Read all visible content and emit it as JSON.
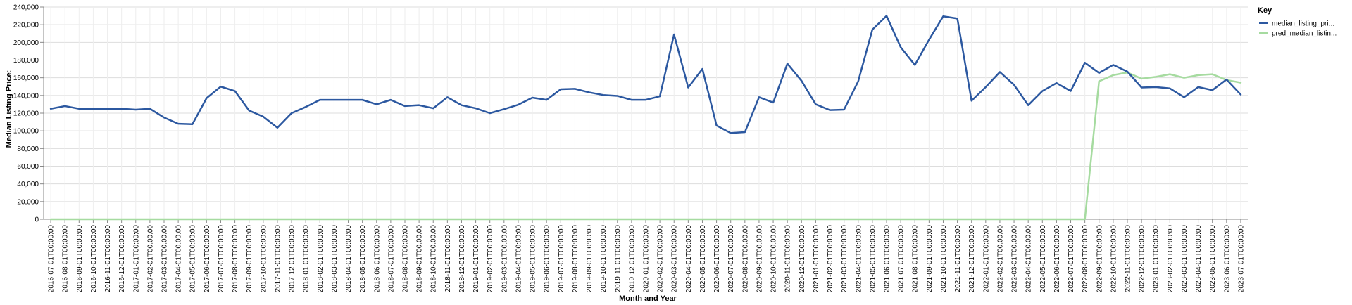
{
  "chart_data": {
    "type": "line",
    "xlabel": "Month and Year",
    "ylabel": "Median Listing Price:",
    "ylim": [
      0,
      240000
    ],
    "yticks": [
      "0",
      "20,000",
      "40,000",
      "60,000",
      "80,000",
      "100,000",
      "120,000",
      "140,000",
      "160,000",
      "180,000",
      "200,000",
      "220,000",
      "240,000"
    ],
    "grid": true,
    "legend": {
      "title": "Key",
      "position": "top-right"
    },
    "x": [
      "2016-07-01T00:00:00",
      "2016-08-01T00:00:00",
      "2016-09-01T00:00:00",
      "2016-10-01T00:00:00",
      "2016-11-01T00:00:00",
      "2016-12-01T00:00:00",
      "2017-01-01T00:00:00",
      "2017-02-01T00:00:00",
      "2017-03-01T00:00:00",
      "2017-04-01T00:00:00",
      "2017-05-01T00:00:00",
      "2017-06-01T00:00:00",
      "2017-07-01T00:00:00",
      "2017-08-01T00:00:00",
      "2017-09-01T00:00:00",
      "2017-10-01T00:00:00",
      "2017-11-01T00:00:00",
      "2017-12-01T00:00:00",
      "2018-01-01T00:00:00",
      "2018-02-01T00:00:00",
      "2018-03-01T00:00:00",
      "2018-04-01T00:00:00",
      "2018-05-01T00:00:00",
      "2018-06-01T00:00:00",
      "2018-07-01T00:00:00",
      "2018-08-01T00:00:00",
      "2018-09-01T00:00:00",
      "2018-10-01T00:00:00",
      "2018-11-01T00:00:00",
      "2018-12-01T00:00:00",
      "2019-01-01T00:00:00",
      "2019-02-01T00:00:00",
      "2019-03-01T00:00:00",
      "2019-04-01T00:00:00",
      "2019-05-01T00:00:00",
      "2019-06-01T00:00:00",
      "2019-07-01T00:00:00",
      "2019-08-01T00:00:00",
      "2019-09-01T00:00:00",
      "2019-10-01T00:00:00",
      "2019-11-01T00:00:00",
      "2019-12-01T00:00:00",
      "2020-01-01T00:00:00",
      "2020-02-01T00:00:00",
      "2020-03-01T00:00:00",
      "2020-04-01T00:00:00",
      "2020-05-01T00:00:00",
      "2020-06-01T00:00:00",
      "2020-07-01T00:00:00",
      "2020-08-01T00:00:00",
      "2020-09-01T00:00:00",
      "2020-10-01T00:00:00",
      "2020-11-01T00:00:00",
      "2020-12-01T00:00:00",
      "2021-01-01T00:00:00",
      "2021-02-01T00:00:00",
      "2021-03-01T00:00:00",
      "2021-04-01T00:00:00",
      "2021-05-01T00:00:00",
      "2021-06-01T00:00:00",
      "2021-07-01T00:00:00",
      "2021-08-01T00:00:00",
      "2021-09-01T00:00:00",
      "2021-10-01T00:00:00",
      "2021-11-01T00:00:00",
      "2021-12-01T00:00:00",
      "2022-01-01T00:00:00",
      "2022-02-01T00:00:00",
      "2022-03-01T00:00:00",
      "2022-04-01T00:00:00",
      "2022-05-01T00:00:00",
      "2022-06-01T00:00:00",
      "2022-07-01T00:00:00",
      "2022-08-01T00:00:00",
      "2022-09-01T00:00:00",
      "2022-10-01T00:00:00",
      "2022-11-01T00:00:00",
      "2022-12-01T00:00:00",
      "2023-01-01T00:00:00",
      "2023-02-01T00:00:00",
      "2023-03-01T00:00:00",
      "2023-04-01T00:00:00",
      "2023-05-01T00:00:00",
      "2023-06-01T00:00:00",
      "2023-07-01T00:00:00"
    ],
    "series": [
      {
        "name": "median_listing_pri...",
        "color": "#2c58a0",
        "values": [
          125000,
          128000,
          125000,
          125000,
          125000,
          125000,
          124000,
          125000,
          115000,
          108000,
          107500,
          137000,
          150000,
          145000,
          123000,
          116000,
          103500,
          120000,
          127000,
          135000,
          135000,
          135000,
          135000,
          130000,
          135000,
          128000,
          129000,
          125500,
          138000,
          129000,
          125500,
          120000,
          124500,
          129500,
          137500,
          135000,
          147000,
          147500,
          143500,
          140500,
          139500,
          135000,
          135000,
          139000,
          209000,
          149000,
          170000,
          106000,
          97500,
          98500,
          138000,
          132000,
          176000,
          156500,
          130000,
          123500,
          124000,
          156000,
          214500,
          230000,
          194500,
          174500,
          203000,
          229500,
          227000,
          134000,
          149500,
          166500,
          152000,
          129000,
          145000,
          154000,
          145000,
          177000,
          165500,
          174500,
          167000,
          149000,
          149500,
          148000,
          138000,
          149500,
          146000,
          158000,
          141000
        ]
      },
      {
        "name": "pred_median_listin...",
        "color": "#a6dba0",
        "values": [
          0,
          0,
          0,
          0,
          0,
          0,
          0,
          0,
          0,
          0,
          0,
          0,
          0,
          0,
          0,
          0,
          0,
          0,
          0,
          0,
          0,
          0,
          0,
          0,
          0,
          0,
          0,
          0,
          0,
          0,
          0,
          0,
          0,
          0,
          0,
          0,
          0,
          0,
          0,
          0,
          0,
          0,
          0,
          0,
          0,
          0,
          0,
          0,
          0,
          0,
          0,
          0,
          0,
          0,
          0,
          0,
          0,
          0,
          0,
          0,
          0,
          0,
          0,
          0,
          0,
          0,
          0,
          0,
          0,
          0,
          0,
          0,
          0,
          0,
          156000,
          163000,
          166000,
          159000,
          161000,
          164000,
          160000,
          163000,
          164000,
          157500,
          154500
        ]
      }
    ]
  }
}
